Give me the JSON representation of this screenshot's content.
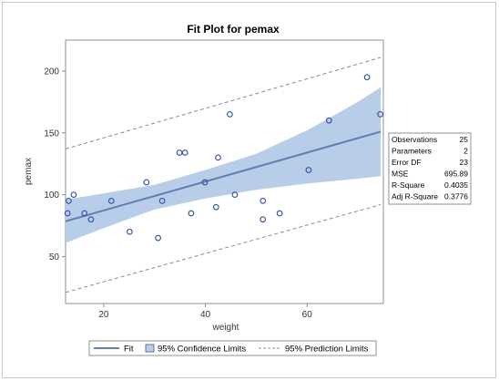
{
  "chart_data": {
    "type": "scatter",
    "title": "Fit Plot for pemax",
    "xlabel": "weight",
    "ylabel": "pemax",
    "xlim": [
      12.5,
      75
    ],
    "ylim": [
      12,
      225
    ],
    "x_ticks": [
      20,
      40,
      60
    ],
    "y_ticks": [
      50,
      100,
      150,
      200
    ],
    "grid": false,
    "legend_position": "bottom",
    "points": [
      {
        "x": 13.1,
        "y": 95
      },
      {
        "x": 12.9,
        "y": 85
      },
      {
        "x": 14.1,
        "y": 100
      },
      {
        "x": 16.2,
        "y": 85
      },
      {
        "x": 17.5,
        "y": 80
      },
      {
        "x": 21.5,
        "y": 95
      },
      {
        "x": 25.1,
        "y": 70
      },
      {
        "x": 28.4,
        "y": 110
      },
      {
        "x": 30.7,
        "y": 65
      },
      {
        "x": 31.5,
        "y": 95
      },
      {
        "x": 34.9,
        "y": 134
      },
      {
        "x": 36.0,
        "y": 134
      },
      {
        "x": 37.2,
        "y": 85
      },
      {
        "x": 39.9,
        "y": 110
      },
      {
        "x": 42.1,
        "y": 90
      },
      {
        "x": 42.5,
        "y": 130
      },
      {
        "x": 44.8,
        "y": 165
      },
      {
        "x": 45.8,
        "y": 100
      },
      {
        "x": 51.3,
        "y": 95
      },
      {
        "x": 51.3,
        "y": 80
      },
      {
        "x": 54.6,
        "y": 85
      },
      {
        "x": 60.3,
        "y": 120
      },
      {
        "x": 64.3,
        "y": 160
      },
      {
        "x": 71.8,
        "y": 195
      },
      {
        "x": 74.4,
        "y": 165
      }
    ],
    "fit_line": {
      "x": [
        12.5,
        74.5
      ],
      "y": [
        78.5,
        151
      ]
    },
    "confidence_band": {
      "x": [
        12.5,
        20,
        30,
        40,
        50,
        60,
        70,
        74.5
      ],
      "lower": [
        61,
        73,
        88,
        97,
        104,
        109,
        113,
        115
      ],
      "upper": [
        96,
        101,
        108,
        120,
        133,
        152,
        175,
        187
      ]
    },
    "prediction_limits": {
      "x": [
        12.5,
        74.5
      ],
      "lower": [
        21,
        92
      ],
      "upper": [
        137,
        211
      ]
    },
    "colors": {
      "fit": "#5f7fad",
      "band": "#b8cde8",
      "points": "#2d4ca1",
      "prediction": "#8c84ad"
    },
    "stats_table": [
      {
        "label": "Observations",
        "value": "25"
      },
      {
        "label": "Parameters",
        "value": "2"
      },
      {
        "label": "Error DF",
        "value": "23"
      },
      {
        "label": "MSE",
        "value": "695.89"
      },
      {
        "label": "R-Square",
        "value": "0.4035"
      },
      {
        "label": "Adj R-Square",
        "value": "0.3776"
      }
    ],
    "legend": [
      {
        "label": "Fit",
        "kind": "line"
      },
      {
        "label": "95% Confidence Limits",
        "kind": "band"
      },
      {
        "label": "95% Prediction Limits",
        "kind": "dashed"
      }
    ]
  }
}
